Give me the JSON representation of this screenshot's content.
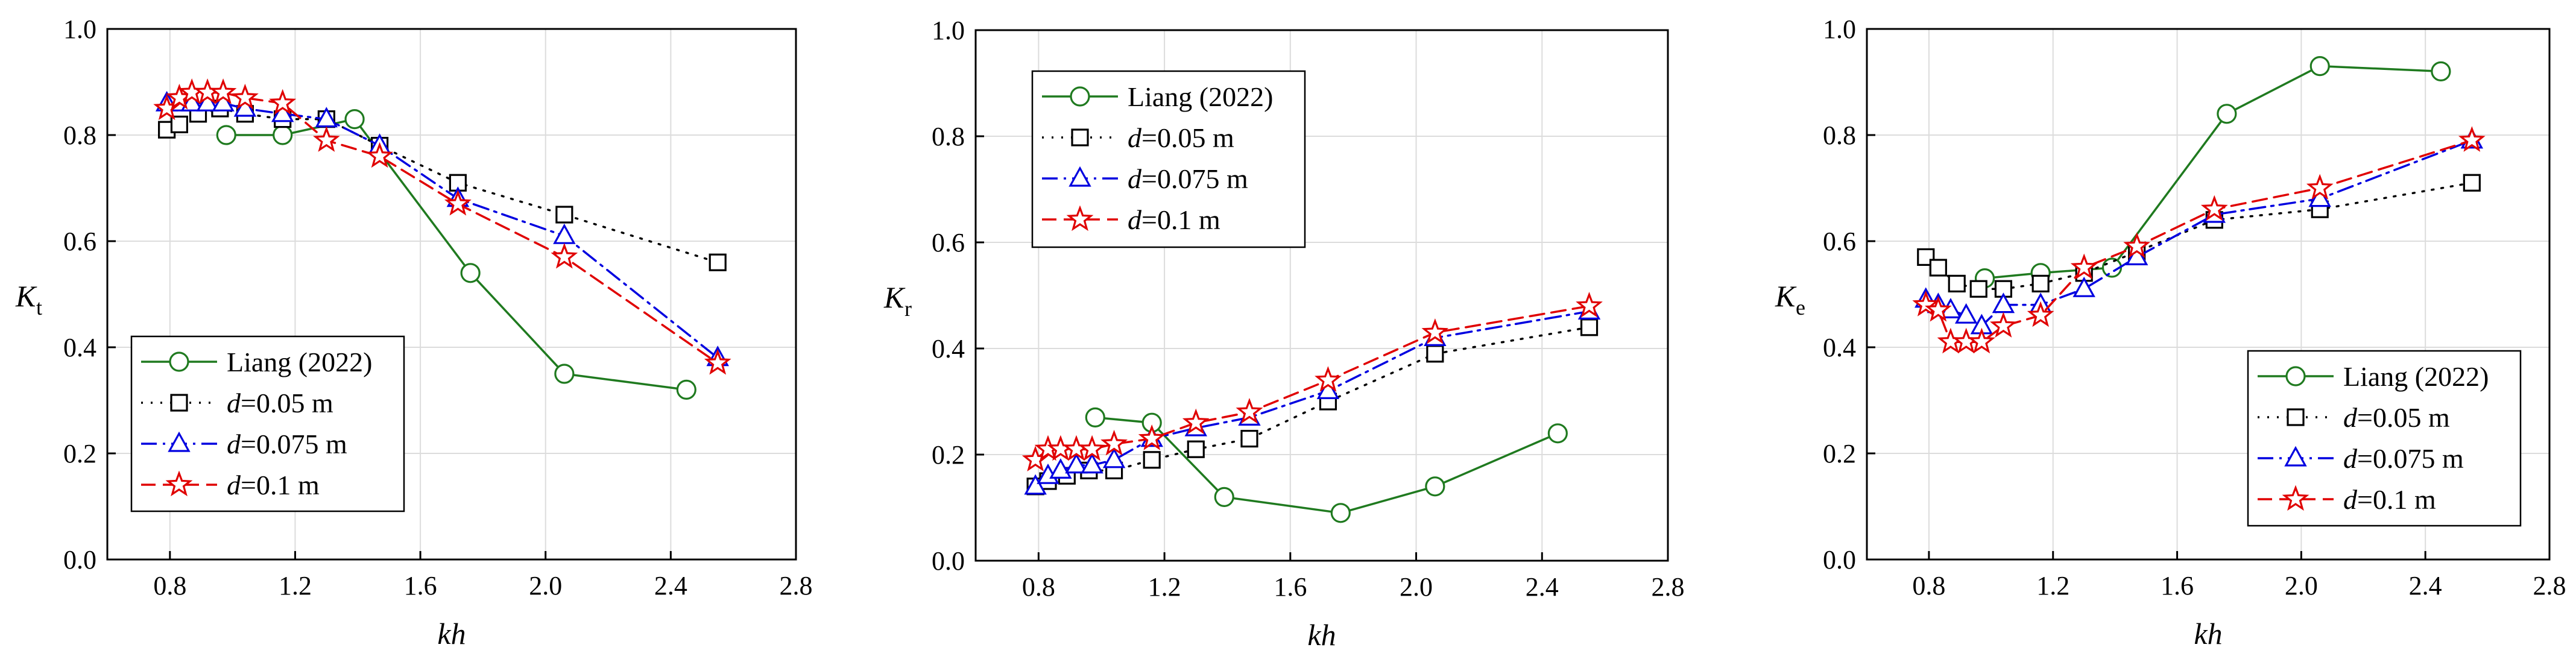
{
  "chart_data": [
    {
      "type": "line",
      "id": "kt",
      "ylabel_main": "K",
      "ylabel_sub": "t",
      "xlabel": "kh",
      "xlim": [
        0.6,
        2.8
      ],
      "ylim": [
        0.0,
        1.0
      ],
      "xticks": [
        "0.8",
        "1.2",
        "1.6",
        "2.0",
        "2.4",
        "2.8"
      ],
      "yticks": [
        "0.0",
        "0.2",
        "0.4",
        "0.6",
        "0.8",
        "1.0"
      ],
      "grid": true,
      "legend_position": "bottom-left",
      "series": [
        {
          "name": "Liang (2022)",
          "italic_prefix": "",
          "color": "#1f7a1f",
          "marker": "circle",
          "dash": "solid",
          "x": [
            0.98,
            1.16,
            1.39,
            1.76,
            2.06,
            2.45
          ],
          "y": [
            0.8,
            0.8,
            0.83,
            0.54,
            0.35,
            0.32
          ]
        },
        {
          "name": "=0.05 m",
          "italic_prefix": "d",
          "color": "#000000",
          "marker": "square",
          "dash": "dot",
          "x": [
            0.79,
            0.83,
            0.89,
            0.96,
            1.04,
            1.16,
            1.3,
            1.47,
            1.72,
            2.06,
            2.55
          ],
          "y": [
            0.81,
            0.82,
            0.84,
            0.85,
            0.84,
            0.83,
            0.83,
            0.78,
            0.71,
            0.65,
            0.56
          ]
        },
        {
          "name": "=0.075 m",
          "italic_prefix": "d",
          "color": "#0000e0",
          "marker": "triangle",
          "dash": "dashdot",
          "x": [
            0.79,
            0.83,
            0.87,
            0.92,
            0.97,
            1.04,
            1.16,
            1.3,
            1.47,
            1.72,
            2.06,
            2.55
          ],
          "y": [
            0.86,
            0.86,
            0.86,
            0.86,
            0.86,
            0.85,
            0.84,
            0.83,
            0.78,
            0.68,
            0.61,
            0.38
          ]
        },
        {
          "name": "=0.1 m",
          "italic_prefix": "d",
          "color": "#e00000",
          "marker": "star",
          "dash": "dash",
          "x": [
            0.79,
            0.83,
            0.87,
            0.92,
            0.97,
            1.04,
            1.16,
            1.3,
            1.47,
            1.72,
            2.06,
            2.55
          ],
          "y": [
            0.85,
            0.87,
            0.88,
            0.88,
            0.88,
            0.87,
            0.86,
            0.79,
            0.76,
            0.67,
            0.57,
            0.37
          ]
        }
      ]
    },
    {
      "type": "line",
      "id": "kr",
      "ylabel_main": "K",
      "ylabel_sub": "r",
      "xlabel": "kh",
      "xlim": [
        0.6,
        2.8
      ],
      "ylim": [
        0.0,
        1.0
      ],
      "xticks": [
        "0.8",
        "1.2",
        "1.6",
        "2.0",
        "2.4",
        "2.8"
      ],
      "yticks": [
        "0.0",
        "0.2",
        "0.4",
        "0.6",
        "0.8",
        "1.0"
      ],
      "grid": true,
      "legend_position": "top-left",
      "series": [
        {
          "name": "Liang (2022)",
          "italic_prefix": "",
          "color": "#1f7a1f",
          "marker": "circle",
          "dash": "solid",
          "x": [
            0.98,
            1.16,
            1.39,
            1.76,
            2.06,
            2.45
          ],
          "y": [
            0.27,
            0.26,
            0.12,
            0.09,
            0.14,
            0.24
          ]
        },
        {
          "name": "=0.05 m",
          "italic_prefix": "d",
          "color": "#000000",
          "marker": "square",
          "dash": "dot",
          "x": [
            0.79,
            0.83,
            0.89,
            0.96,
            1.04,
            1.16,
            1.3,
            1.47,
            1.72,
            2.06,
            2.55
          ],
          "y": [
            0.14,
            0.15,
            0.16,
            0.17,
            0.17,
            0.19,
            0.21,
            0.23,
            0.3,
            0.39,
            0.44
          ]
        },
        {
          "name": "=0.075 m",
          "italic_prefix": "d",
          "color": "#0000e0",
          "marker": "triangle",
          "dash": "dashdot",
          "x": [
            0.79,
            0.83,
            0.87,
            0.92,
            0.97,
            1.04,
            1.16,
            1.3,
            1.47,
            1.72,
            2.06,
            2.55
          ],
          "y": [
            0.14,
            0.16,
            0.17,
            0.18,
            0.18,
            0.19,
            0.23,
            0.25,
            0.27,
            0.32,
            0.42,
            0.47
          ]
        },
        {
          "name": "=0.1 m",
          "italic_prefix": "d",
          "color": "#e00000",
          "marker": "star",
          "dash": "dash",
          "x": [
            0.79,
            0.83,
            0.87,
            0.92,
            0.97,
            1.04,
            1.16,
            1.3,
            1.47,
            1.72,
            2.06,
            2.55
          ],
          "y": [
            0.19,
            0.21,
            0.21,
            0.21,
            0.21,
            0.22,
            0.23,
            0.26,
            0.28,
            0.34,
            0.43,
            0.48
          ]
        }
      ]
    },
    {
      "type": "line",
      "id": "ke",
      "ylabel_main": "K",
      "ylabel_sub": "e",
      "xlabel": "kh",
      "xlim": [
        0.6,
        2.8
      ],
      "ylim": [
        0.0,
        1.0
      ],
      "xticks": [
        "0.8",
        "1.2",
        "1.6",
        "2.0",
        "2.4",
        "2.8"
      ],
      "yticks": [
        "0.0",
        "0.2",
        "0.4",
        "0.6",
        "0.8",
        "1.0"
      ],
      "grid": true,
      "legend_position": "bottom-right",
      "series": [
        {
          "name": "Liang (2022)",
          "italic_prefix": "",
          "color": "#1f7a1f",
          "marker": "circle",
          "dash": "solid",
          "x": [
            0.98,
            1.16,
            1.39,
            1.76,
            2.06,
            2.45
          ],
          "y": [
            0.53,
            0.54,
            0.55,
            0.84,
            0.93,
            0.92
          ]
        },
        {
          "name": "=0.05 m",
          "italic_prefix": "d",
          "color": "#000000",
          "marker": "square",
          "dash": "dot",
          "x": [
            0.79,
            0.83,
            0.89,
            0.96,
            1.04,
            1.16,
            1.3,
            1.47,
            1.72,
            2.06,
            2.55
          ],
          "y": [
            0.57,
            0.55,
            0.52,
            0.51,
            0.51,
            0.52,
            0.54,
            0.58,
            0.64,
            0.66,
            0.71
          ]
        },
        {
          "name": "=0.075 m",
          "italic_prefix": "d",
          "color": "#0000e0",
          "marker": "triangle",
          "dash": "dashdot",
          "x": [
            0.79,
            0.83,
            0.87,
            0.92,
            0.97,
            1.04,
            1.16,
            1.3,
            1.47,
            1.72,
            2.06,
            2.55
          ],
          "y": [
            0.49,
            0.48,
            0.47,
            0.46,
            0.44,
            0.48,
            0.48,
            0.51,
            0.57,
            0.65,
            0.68,
            0.79
          ]
        },
        {
          "name": "=0.1 m",
          "italic_prefix": "d",
          "color": "#e00000",
          "marker": "star",
          "dash": "dash",
          "x": [
            0.79,
            0.83,
            0.87,
            0.92,
            0.97,
            1.04,
            1.16,
            1.3,
            1.47,
            1.72,
            2.06,
            2.55
          ],
          "y": [
            0.48,
            0.47,
            0.41,
            0.41,
            0.41,
            0.44,
            0.46,
            0.55,
            0.59,
            0.66,
            0.7,
            0.79
          ]
        }
      ]
    }
  ]
}
